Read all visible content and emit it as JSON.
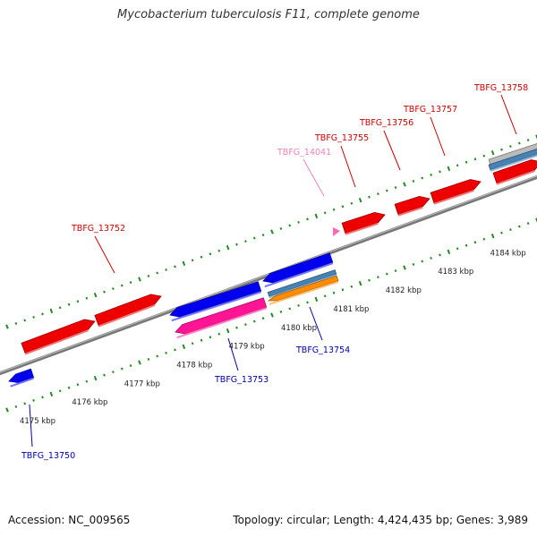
{
  "title": "Mycobacterium tuberculosis F11, complete genome",
  "footer": {
    "accession": "Accession: NC_009565",
    "summary": "Topology: circular; Length: 4,424,435 bp; Genes: 3,989"
  },
  "scale_labels": [
    {
      "text": "4175 kbp",
      "pos": 4175
    },
    {
      "text": "4176 kbp",
      "pos": 4176
    },
    {
      "text": "4177 kbp",
      "pos": 4177
    },
    {
      "text": "4178 kbp",
      "pos": 4178
    },
    {
      "text": "4179 kbp",
      "pos": 4179
    },
    {
      "text": "4180 kbp",
      "pos": 4180
    },
    {
      "text": "4181 kbp",
      "pos": 4181
    },
    {
      "text": "4182 kbp",
      "pos": 4182
    },
    {
      "text": "4183 kbp",
      "pos": 4183
    },
    {
      "text": "4184 kbp",
      "pos": 4184
    }
  ],
  "genes": [
    {
      "label": "TBFG_13750",
      "color": "#0000ee",
      "strand": "minus"
    },
    {
      "label": "TBFG_13752",
      "color": "#ee0000",
      "strand": "plus"
    },
    {
      "label": "TBFG_13753",
      "color": "#ff1493",
      "strand": "minus"
    },
    {
      "label": "TBFG_13754",
      "color": "#ff8c00",
      "strand": "minus"
    },
    {
      "label": "TBFG_14041",
      "color": "#ff69b4",
      "strand": "plus"
    },
    {
      "label": "TBFG_13755",
      "color": "#ee0000",
      "strand": "plus"
    },
    {
      "label": "TBFG_13756",
      "color": "#ee0000",
      "strand": "plus"
    },
    {
      "label": "TBFG_13757",
      "color": "#ee0000",
      "strand": "plus"
    },
    {
      "label": "TBFG_13758",
      "color": "#ee0000",
      "strand": "plus"
    }
  ],
  "colors": {
    "forward_gene": "#ee0000",
    "reverse_gene": "#0000ee",
    "pseudo_pink": "#ff1493",
    "rna_orange": "#ff8c00",
    "misc_steel": "#4682b4",
    "backbone": "#808080",
    "tick": "#228b22",
    "label_forward": "#cc0000",
    "label_reverse": "#0000aa",
    "label_pink": "#ee82b4"
  }
}
